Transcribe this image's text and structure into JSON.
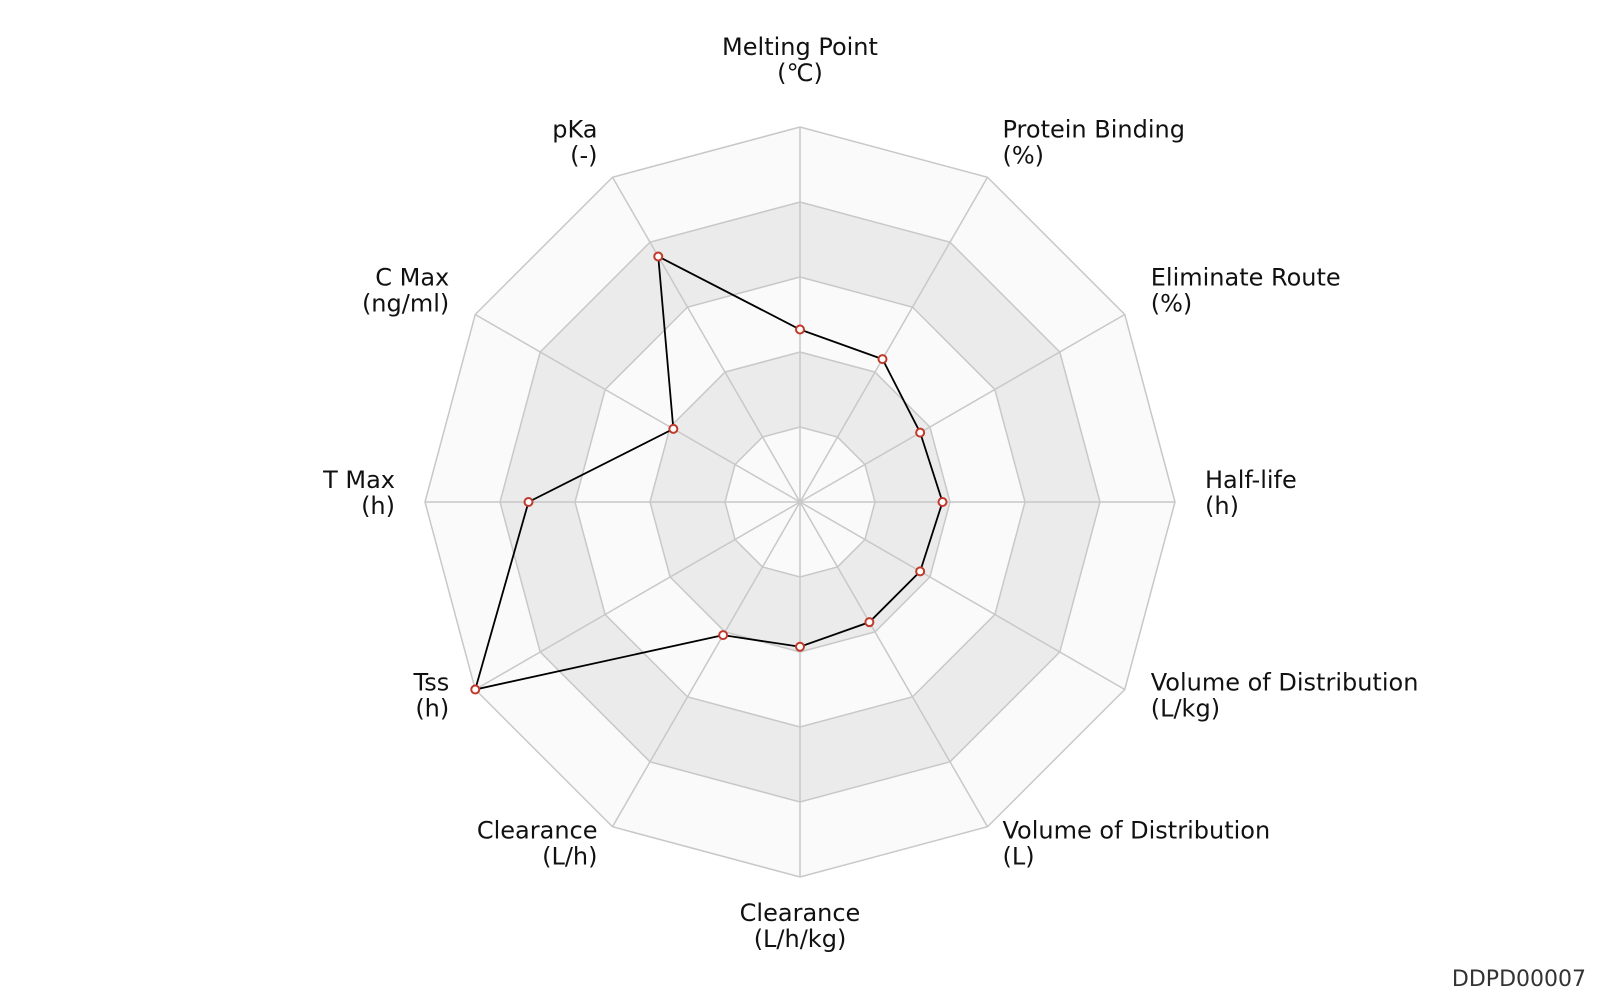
{
  "record_id": "DDPD00007",
  "colors": {
    "ring_light": "#fafafa",
    "ring_dark": "#ebebeb",
    "grid_line": "#c8c8c8",
    "series_line": "#000000",
    "marker_edge": "#c0392b",
    "marker_fill": "#ffffff"
  },
  "chart_data": {
    "type": "radar",
    "ring_count": 5,
    "rlim": [
      0,
      5
    ],
    "axes": [
      {
        "name": "Melting Point",
        "unit": "(℃)",
        "value": 2.3
      },
      {
        "name": "Protein Binding",
        "unit": "(%)",
        "value": 2.2
      },
      {
        "name": "Eliminate Route",
        "unit": "(%)",
        "value": 1.85
      },
      {
        "name": "Half-life",
        "unit": "(h)",
        "value": 1.9
      },
      {
        "name": "Volume of Distribution",
        "unit": "(L/kg)",
        "value": 1.85
      },
      {
        "name": "Volume of Distribution",
        "unit": "(L)",
        "value": 1.85
      },
      {
        "name": "Clearance",
        "unit": "(L/h/kg)",
        "value": 1.93
      },
      {
        "name": "Clearance",
        "unit": "(L/h)",
        "value": 2.05
      },
      {
        "name": "Tss",
        "unit": "(h)",
        "value": 5.0
      },
      {
        "name": "T Max",
        "unit": "(h)",
        "value": 3.62
      },
      {
        "name": "C Max",
        "unit": "(ng/ml)",
        "value": 1.95
      },
      {
        "name": "pKa",
        "unit": "(-)",
        "value": 3.78
      }
    ]
  }
}
